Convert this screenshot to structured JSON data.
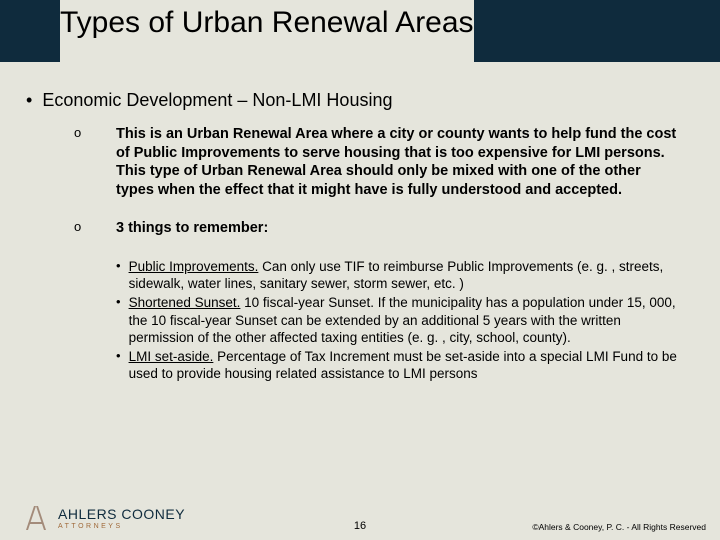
{
  "title": "Types of Urban Renewal Areas",
  "topBullet": "Economic Development – Non-LMI Housing",
  "sub": [
    {
      "marker": "o",
      "bold": true,
      "text": "This is an Urban Renewal Area where a city or county wants to help fund the cost of Public Improvements to serve housing that is too expensive for LMI persons.  This type of Urban Renewal Area should only be mixed with one of the other types when the effect that it might have is fully understood and accepted."
    },
    {
      "marker": "o",
      "bold": true,
      "text": "3 things to remember:"
    }
  ],
  "inner": [
    {
      "lead": "Public Improvements.",
      "rest": "  Can only use TIF to reimburse Public Improvements (e. g. , streets, sidewalk, water lines, sanitary sewer, storm sewer, etc. )"
    },
    {
      "lead": "Shortened Sunset.",
      "rest": "  10 fiscal-year Sunset.  If the municipality has a population under 15, 000, the 10 fiscal-year Sunset can be extended by an additional 5 years with the written permission of the other affected taxing entities (e. g. , city, school, county)."
    },
    {
      "lead": "LMI set-aside.",
      "rest": " Percentage of Tax Increment must be set-aside into a special LMI Fund to be used to provide housing related assistance to LMI persons"
    }
  ],
  "logo": {
    "name": "AHLERS COONEY",
    "sub": "ATTORNEYS",
    "nameColor": "#0f2b3d",
    "subColor": "#a06a3a",
    "markColor": "#a38b7a"
  },
  "pageNumber": "16",
  "copyright": "©Ahlers & Cooney, P. C. - All Rights Reserved",
  "colors": {
    "bg": "#e5e5dc",
    "bar": "#0f2b3d"
  }
}
